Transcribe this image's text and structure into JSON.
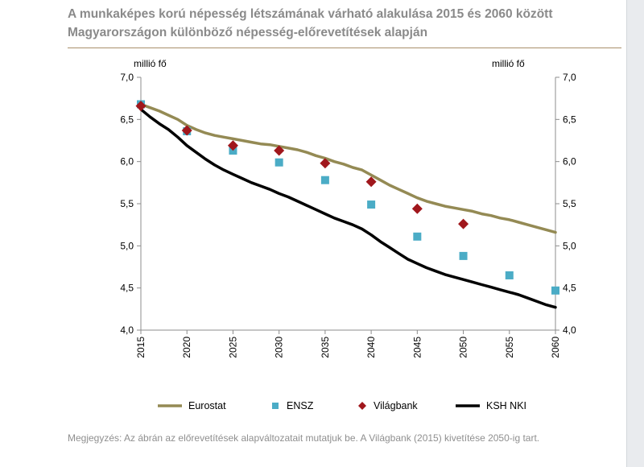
{
  "title_line1": "A munkaképes korú népesség létszámának várható alakulása 2015 és 2060 között",
  "title_line2": "Magyarországon különböző népesség-előrevetítések alapján",
  "unit_left": "millió fő",
  "unit_right": "millió fő",
  "note": "Megjegyzés: Az ábrán az előrevetítések alapváltozatait mutatjuk be. A Világbank (2015) kivetítése 2050-ig tart.",
  "colors": {
    "eurostat": "#948a54",
    "ensz": "#4bacc6",
    "vilagbank": "#a0171c",
    "kshnki": "#000000",
    "title": "#8a8a8a",
    "rule": "#a9906a"
  },
  "chart_data": {
    "type": "line",
    "x_ticks": [
      "2015",
      "2020",
      "2025",
      "2030",
      "2035",
      "2040",
      "2045",
      "2050",
      "2055",
      "2060"
    ],
    "y_ticks": [
      "4,0",
      "4,5",
      "5,0",
      "5,5",
      "6,0",
      "6,5",
      "7,0"
    ],
    "ylim": [
      4.0,
      7.0
    ],
    "xlim": [
      2015,
      2060
    ],
    "grid": false,
    "legend_position": "bottom",
    "series": [
      {
        "name": "Eurostat",
        "style": "line",
        "color": "#948a54",
        "x": [
          2015,
          2016,
          2017,
          2018,
          2019,
          2020,
          2021,
          2022,
          2023,
          2024,
          2025,
          2026,
          2027,
          2028,
          2029,
          2030,
          2031,
          2032,
          2033,
          2034,
          2035,
          2036,
          2037,
          2038,
          2039,
          2040,
          2041,
          2042,
          2043,
          2044,
          2045,
          2046,
          2047,
          2048,
          2049,
          2050,
          2051,
          2052,
          2053,
          2054,
          2055,
          2056,
          2057,
          2058,
          2059,
          2060
        ],
        "y": [
          6.68,
          6.64,
          6.6,
          6.55,
          6.5,
          6.43,
          6.38,
          6.34,
          6.31,
          6.29,
          6.27,
          6.25,
          6.23,
          6.21,
          6.2,
          6.18,
          6.16,
          6.14,
          6.11,
          6.07,
          6.04,
          6.0,
          5.97,
          5.93,
          5.9,
          5.84,
          5.78,
          5.72,
          5.67,
          5.62,
          5.57,
          5.53,
          5.5,
          5.47,
          5.45,
          5.43,
          5.41,
          5.38,
          5.36,
          5.33,
          5.31,
          5.28,
          5.25,
          5.22,
          5.19,
          5.16
        ]
      },
      {
        "name": "ENSZ",
        "style": "markers",
        "marker": "square",
        "color": "#4bacc6",
        "x": [
          2015,
          2020,
          2025,
          2030,
          2035,
          2040,
          2045,
          2050,
          2055,
          2060
        ],
        "y": [
          6.68,
          6.36,
          6.13,
          5.99,
          5.78,
          5.49,
          5.11,
          4.88,
          4.65,
          4.47
        ]
      },
      {
        "name": "Világbank",
        "style": "markers",
        "marker": "diamond",
        "color": "#a0171c",
        "x": [
          2015,
          2020,
          2025,
          2030,
          2035,
          2040,
          2045,
          2050
        ],
        "y": [
          6.66,
          6.37,
          6.19,
          6.13,
          5.98,
          5.76,
          5.44,
          5.26
        ]
      },
      {
        "name": "KSH NKI",
        "style": "line",
        "color": "#000000",
        "x": [
          2015,
          2016,
          2017,
          2018,
          2019,
          2020,
          2021,
          2022,
          2023,
          2024,
          2025,
          2026,
          2027,
          2028,
          2029,
          2030,
          2031,
          2032,
          2033,
          2034,
          2035,
          2036,
          2037,
          2038,
          2039,
          2040,
          2041,
          2042,
          2043,
          2044,
          2045,
          2046,
          2047,
          2048,
          2049,
          2050,
          2051,
          2052,
          2053,
          2054,
          2055,
          2056,
          2057,
          2058,
          2059,
          2060
        ],
        "y": [
          6.62,
          6.53,
          6.45,
          6.38,
          6.29,
          6.19,
          6.11,
          6.03,
          5.96,
          5.9,
          5.85,
          5.8,
          5.75,
          5.71,
          5.67,
          5.62,
          5.58,
          5.53,
          5.48,
          5.43,
          5.38,
          5.33,
          5.29,
          5.25,
          5.2,
          5.13,
          5.05,
          4.98,
          4.91,
          4.84,
          4.79,
          4.74,
          4.7,
          4.66,
          4.63,
          4.6,
          4.57,
          4.54,
          4.51,
          4.48,
          4.45,
          4.42,
          4.38,
          4.34,
          4.3,
          4.27
        ]
      }
    ]
  }
}
